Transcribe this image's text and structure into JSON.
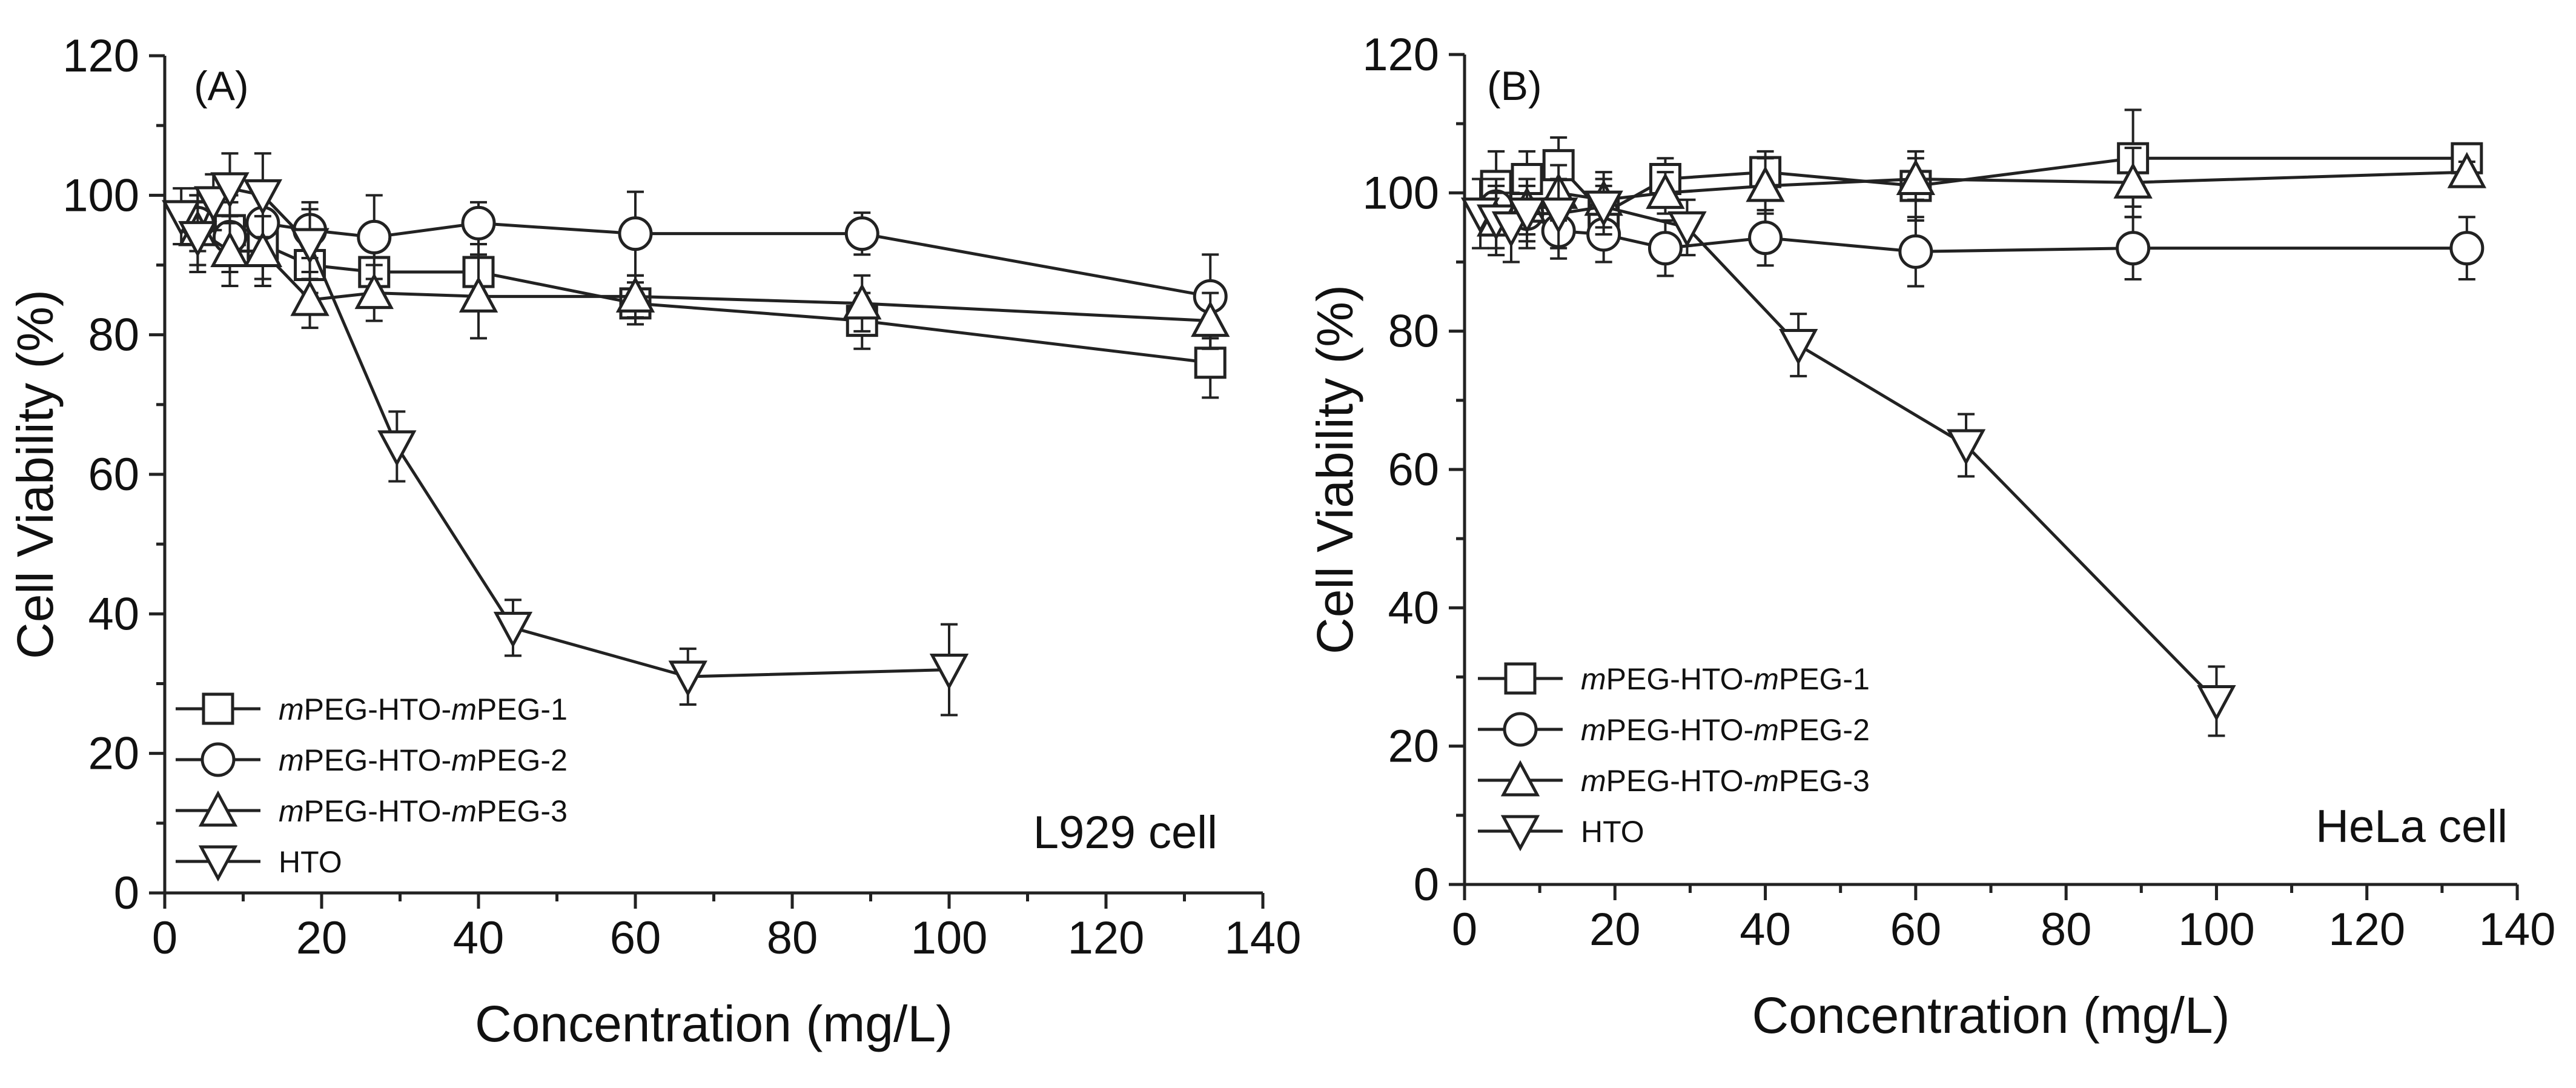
{
  "chart_data": [
    {
      "type": "line",
      "panel_label": "(A)",
      "cell_label": "L929 cell",
      "xlabel": "Concentration (mg/L)",
      "ylabel": "Cell Viability (%)",
      "xlim": [
        0,
        140
      ],
      "ylim": [
        0,
        120
      ],
      "xticks": [
        0,
        20,
        40,
        60,
        80,
        100,
        120,
        140
      ],
      "yticks": [
        0,
        20,
        40,
        60,
        80,
        100,
        120
      ],
      "legend_position": "bottom-left",
      "series": [
        {
          "name": "mPEG-HTO-mPEG-1",
          "legend": {
            "italic": "m",
            "mid": "PEG-HTO-",
            "italic2": "m",
            "end": "PEG-1"
          },
          "marker": "square",
          "points": [
            {
              "x": 4.2,
              "y": 97,
              "err": 4
            },
            {
              "x": 8.3,
              "y": 95,
              "err": 5
            },
            {
              "x": 12.5,
              "y": 93,
              "err": 5
            },
            {
              "x": 18.5,
              "y": 90,
              "err": 4
            },
            {
              "x": 26.7,
              "y": 89,
              "err": 4
            },
            {
              "x": 40,
              "y": 89,
              "err": 4
            },
            {
              "x": 60,
              "y": 84.5,
              "err": 3
            },
            {
              "x": 88.9,
              "y": 82,
              "err": 4
            },
            {
              "x": 133.3,
              "y": 76,
              "err": 5
            }
          ]
        },
        {
          "name": "mPEG-HTO-mPEG-2",
          "legend": {
            "italic": "m",
            "mid": "PEG-HTO-",
            "italic2": "m",
            "end": "PEG-2"
          },
          "marker": "circle",
          "points": [
            {
              "x": 4.2,
              "y": 96,
              "err": 4
            },
            {
              "x": 8.3,
              "y": 94,
              "err": 5
            },
            {
              "x": 12.5,
              "y": 96,
              "err": 4
            },
            {
              "x": 18.5,
              "y": 95,
              "err": 4
            },
            {
              "x": 26.7,
              "y": 94,
              "err": 6
            },
            {
              "x": 40,
              "y": 96,
              "err": 3
            },
            {
              "x": 60,
              "y": 94.5,
              "err": 6
            },
            {
              "x": 88.9,
              "y": 94.5,
              "err": 3
            },
            {
              "x": 133.3,
              "y": 85.5,
              "err": 6
            }
          ]
        },
        {
          "name": "mPEG-HTO-mPEG-3",
          "legend": {
            "italic": "m",
            "mid": "PEG-HTO-",
            "italic2": "m",
            "end": "PEG-3"
          },
          "marker": "triangle-up",
          "points": [
            {
              "x": 4.2,
              "y": 95,
              "err": 5
            },
            {
              "x": 8.3,
              "y": 92,
              "err": 5
            },
            {
              "x": 12.5,
              "y": 92,
              "err": 5
            },
            {
              "x": 18.5,
              "y": 85,
              "err": 4
            },
            {
              "x": 26.7,
              "y": 86,
              "err": 4
            },
            {
              "x": 40,
              "y": 85.5,
              "err": 6
            },
            {
              "x": 60,
              "y": 85.5,
              "err": 3
            },
            {
              "x": 88.9,
              "y": 84.5,
              "err": 4
            },
            {
              "x": 133.3,
              "y": 82,
              "err": 4
            }
          ]
        },
        {
          "name": "HTO",
          "legend": {
            "italic": "",
            "mid": "HTO",
            "italic2": "",
            "end": ""
          },
          "marker": "triangle-down",
          "points": [
            {
              "x": 2.1,
              "y": 97,
              "err": 4
            },
            {
              "x": 4.2,
              "y": 94,
              "err": 5
            },
            {
              "x": 6.2,
              "y": 99,
              "err": 4
            },
            {
              "x": 8.3,
              "y": 101,
              "err": 5
            },
            {
              "x": 12.5,
              "y": 100,
              "err": 6
            },
            {
              "x": 18.5,
              "y": 93,
              "err": 5
            },
            {
              "x": 29.6,
              "y": 64,
              "err": 5
            },
            {
              "x": 44.4,
              "y": 38,
              "err": 4
            },
            {
              "x": 66.7,
              "y": 31,
              "err": 4
            },
            {
              "x": 100,
              "y": 32,
              "err": 6.5
            }
          ]
        }
      ]
    },
    {
      "type": "line",
      "panel_label": "(B)",
      "cell_label": "HeLa cell",
      "xlabel": "Concentration (mg/L)",
      "ylabel": "Cell Viability (%)",
      "xlim": [
        0,
        140
      ],
      "ylim": [
        0,
        120
      ],
      "xticks": [
        0,
        20,
        40,
        60,
        80,
        100,
        120,
        140
      ],
      "yticks": [
        0,
        20,
        40,
        60,
        80,
        100,
        120
      ],
      "legend_position": "bottom-left",
      "series": [
        {
          "name": "mPEG-HTO-mPEG-1",
          "legend": {
            "italic": "m",
            "mid": "PEG-HTO-",
            "italic2": "m",
            "end": "PEG-1"
          },
          "marker": "square",
          "points": [
            {
              "x": 4.2,
              "y": 101,
              "err": 5
            },
            {
              "x": 8.3,
              "y": 102,
              "err": 4
            },
            {
              "x": 12.5,
              "y": 104,
              "err": 4
            },
            {
              "x": 18.5,
              "y": 97,
              "err": 4
            },
            {
              "x": 26.7,
              "y": 102,
              "err": 3
            },
            {
              "x": 40,
              "y": 103,
              "err": 3
            },
            {
              "x": 60,
              "y": 101,
              "err": 5
            },
            {
              "x": 88.9,
              "y": 105,
              "err": 7
            },
            {
              "x": 133.3,
              "y": 105,
              "err": 1
            }
          ]
        },
        {
          "name": "mPEG-HTO-mPEG-2",
          "legend": {
            "italic": "m",
            "mid": "PEG-HTO-",
            "italic2": "m",
            "end": "PEG-2"
          },
          "marker": "circle",
          "points": [
            {
              "x": 4.2,
              "y": 98,
              "err": 4
            },
            {
              "x": 8.3,
              "y": 97,
              "err": 4
            },
            {
              "x": 12.5,
              "y": 94.5,
              "err": 4
            },
            {
              "x": 18.5,
              "y": 94,
              "err": 4
            },
            {
              "x": 26.7,
              "y": 92,
              "err": 4
            },
            {
              "x": 40,
              "y": 93.5,
              "err": 4
            },
            {
              "x": 60,
              "y": 91.5,
              "err": 5
            },
            {
              "x": 88.9,
              "y": 92,
              "err": 4.5
            },
            {
              "x": 133.3,
              "y": 92,
              "err": 4.5
            }
          ]
        },
        {
          "name": "mPEG-HTO-mPEG-3",
          "legend": {
            "italic": "m",
            "mid": "PEG-HTO-",
            "italic2": "m",
            "end": "PEG-3"
          },
          "marker": "triangle-up",
          "points": [
            {
              "x": 4.2,
              "y": 96,
              "err": 4
            },
            {
              "x": 8.3,
              "y": 98,
              "err": 4
            },
            {
              "x": 12.5,
              "y": 100,
              "err": 4
            },
            {
              "x": 18.5,
              "y": 99,
              "err": 4
            },
            {
              "x": 26.7,
              "y": 100,
              "err": 3
            },
            {
              "x": 40,
              "y": 101,
              "err": 4
            },
            {
              "x": 60,
              "y": 102,
              "err": 3
            },
            {
              "x": 88.9,
              "y": 101.5,
              "err": 5
            },
            {
              "x": 133.3,
              "y": 103,
              "err": 1.5
            }
          ]
        },
        {
          "name": "HTO",
          "legend": {
            "italic": "",
            "mid": "HTO",
            "italic2": "",
            "end": ""
          },
          "marker": "triangle-down",
          "points": [
            {
              "x": 2.1,
              "y": 97,
              "err": 5
            },
            {
              "x": 4.2,
              "y": 96,
              "err": 5
            },
            {
              "x": 6.2,
              "y": 95,
              "err": 5
            },
            {
              "x": 8.3,
              "y": 97,
              "err": 5
            },
            {
              "x": 12.5,
              "y": 97,
              "err": 5
            },
            {
              "x": 18.5,
              "y": 98,
              "err": 4
            },
            {
              "x": 29.6,
              "y": 95,
              "err": 4
            },
            {
              "x": 44.4,
              "y": 78,
              "err": 4.5
            },
            {
              "x": 66.7,
              "y": 63.5,
              "err": 4.5
            },
            {
              "x": 100,
              "y": 26.5,
              "err": 5
            }
          ]
        }
      ]
    }
  ]
}
